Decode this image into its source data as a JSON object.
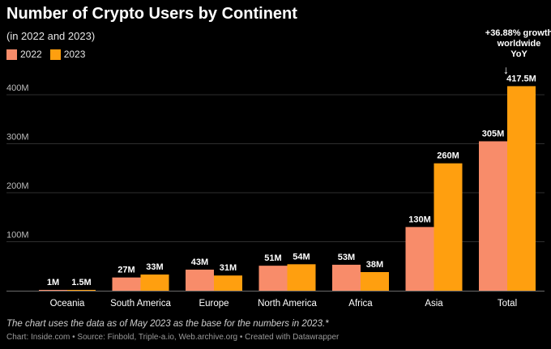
{
  "chart_data": {
    "type": "bar",
    "title": "Number of Crypto Users by Continent",
    "subtitle": "(in 2022 and 2023)",
    "categories": [
      "Oceania",
      "South America",
      "Europe",
      "North America",
      "Africa",
      "Asia",
      "Total"
    ],
    "series": [
      {
        "name": "2022",
        "color": "#f88c6a",
        "values": [
          1,
          27,
          43,
          51,
          53,
          130,
          305
        ],
        "labels": [
          "1M",
          "27M",
          "43M",
          "51M",
          "53M",
          "130M",
          "305M"
        ]
      },
      {
        "name": "2023",
        "color": "#ff9f0f",
        "values": [
          1.5,
          33,
          31,
          54,
          38,
          260,
          417.5
        ],
        "labels": [
          "1.5M",
          "33M",
          "31M",
          "54M",
          "38M",
          "260M",
          "417.5M"
        ]
      }
    ],
    "ylim": [
      0,
      420
    ],
    "yticks": [
      100,
      200,
      300,
      400
    ],
    "ytick_labels": [
      "100M",
      "200M",
      "300M",
      "400M"
    ],
    "grid": true,
    "legend": "top-left",
    "annotation": {
      "lines": [
        "+36.88% growth",
        "worldwide",
        "YoY"
      ],
      "arrow": "↓",
      "target": "Total"
    },
    "note": "The chart uses the data as of May 2023 as the base for the numbers in 2023.*",
    "source": "Chart: Inside.com • Source: Finbold, Triple-a.io, Web.archive.org • Created with Datawrapper"
  }
}
